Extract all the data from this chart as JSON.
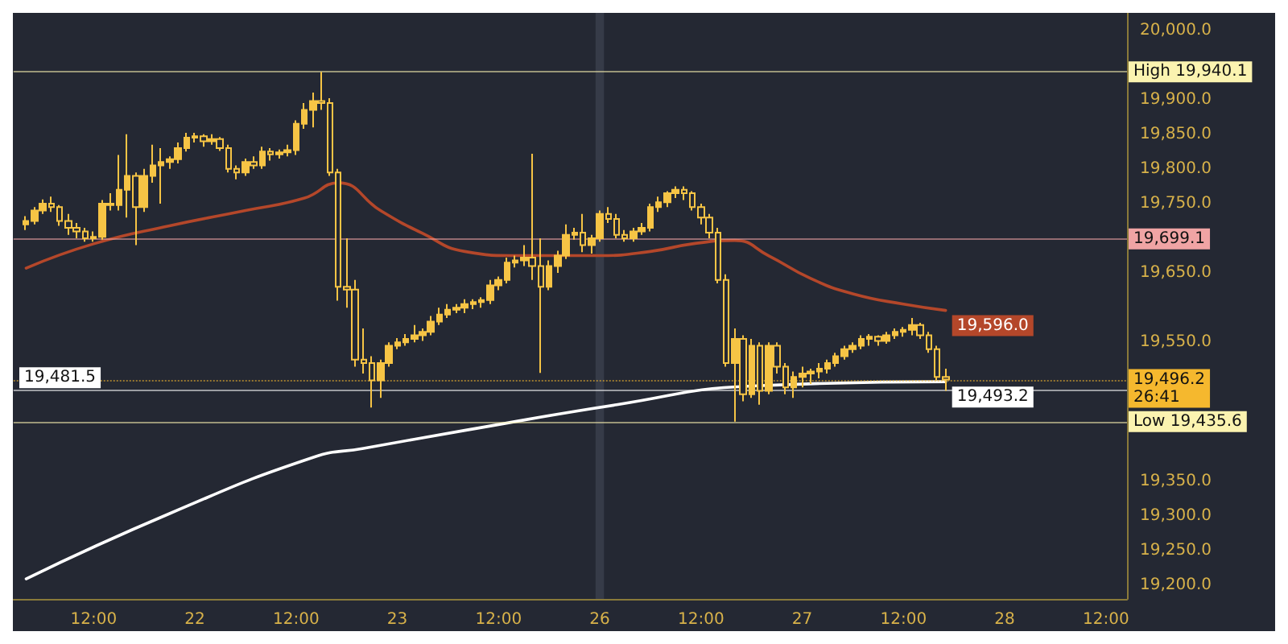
{
  "chart_data": {
    "type": "candlestick",
    "color": "#f6c445",
    "categories": [
      null,
      null,
      null,
      null,
      null,
      null,
      null,
      null,
      null,
      "12:00",
      null,
      null,
      null,
      null,
      null,
      null,
      null,
      null,
      null,
      null,
      null,
      "22",
      null,
      null,
      null,
      null,
      null,
      null,
      null,
      null,
      null,
      null,
      null,
      "12:00",
      null,
      null,
      null,
      null,
      null,
      null,
      null,
      null,
      null,
      null,
      null,
      "23",
      null,
      null,
      null,
      null,
      null,
      null,
      null,
      null,
      null,
      null,
      null,
      "12:00",
      null,
      null,
      null,
      null,
      null,
      null,
      null,
      null,
      null,
      null,
      null,
      "26",
      null,
      null,
      null,
      null,
      null,
      null,
      null,
      null,
      null,
      null,
      null,
      "12:00",
      null,
      null,
      null,
      null,
      null,
      null,
      null,
      null,
      null,
      null,
      null,
      "27",
      null,
      null,
      null,
      null,
      null,
      null,
      null,
      null,
      null,
      null,
      null,
      "12:00",
      null,
      null,
      null,
      null,
      null,
      null,
      null,
      null,
      null,
      null,
      null,
      "28",
      null,
      null,
      null,
      null,
      null,
      null,
      null,
      null,
      null,
      null,
      null,
      "12:00",
      null,
      null
    ],
    "ohlc": [
      null,
      [
        19720,
        19732,
        19712,
        19725
      ],
      [
        19725,
        19745,
        19720,
        19740
      ],
      [
        19740,
        19756,
        19735,
        19750
      ],
      [
        19750,
        19760,
        19738,
        19745
      ],
      [
        19745,
        19748,
        19718,
        19725
      ],
      [
        19725,
        19735,
        19705,
        19715
      ],
      [
        19715,
        19722,
        19700,
        19710
      ],
      [
        19710,
        19715,
        19695,
        19700
      ],
      [
        19700,
        19710,
        19695,
        19702
      ],
      [
        19702,
        19755,
        19698,
        19750
      ],
      [
        19750,
        19765,
        19740,
        19748
      ],
      [
        19748,
        19820,
        19740,
        19770
      ],
      [
        19770,
        19850,
        19730,
        19790
      ],
      [
        19790,
        19795,
        19690,
        19745
      ],
      [
        19745,
        19800,
        19738,
        19790
      ],
      [
        19790,
        19835,
        19780,
        19805
      ],
      [
        19805,
        19830,
        19750,
        19810
      ],
      [
        19810,
        19818,
        19800,
        19814
      ],
      [
        19814,
        19838,
        19808,
        19830
      ],
      [
        19830,
        19852,
        19825,
        19845
      ],
      [
        19845,
        19852,
        19838,
        19847
      ],
      [
        19847,
        19850,
        19832,
        19840
      ],
      [
        19840,
        19850,
        19835,
        19843
      ],
      [
        19843,
        19846,
        19826,
        19830
      ],
      [
        19830,
        19835,
        19795,
        19800
      ],
      [
        19800,
        19805,
        19785,
        19795
      ],
      [
        19795,
        19815,
        19790,
        19810
      ],
      [
        19810,
        19818,
        19800,
        19805
      ],
      [
        19805,
        19832,
        19800,
        19825
      ],
      [
        19825,
        19830,
        19812,
        19821
      ],
      [
        19821,
        19828,
        19815,
        19824
      ],
      [
        19824,
        19835,
        19818,
        19827
      ],
      [
        19827,
        19870,
        19820,
        19865
      ],
      [
        19865,
        19895,
        19858,
        19885
      ],
      [
        19885,
        19910,
        19860,
        19898
      ],
      [
        19898,
        19940.1,
        19885,
        19895
      ],
      [
        19895,
        19902,
        19790,
        19795
      ],
      [
        19795,
        19800,
        19610,
        19630
      ],
      [
        19630,
        19700,
        19600,
        19626
      ],
      [
        19626,
        19640,
        19515,
        19525
      ],
      [
        19525,
        19570,
        19505,
        19520
      ],
      [
        19520,
        19530,
        19456,
        19495
      ],
      [
        19495,
        19525,
        19470,
        19520
      ],
      [
        19520,
        19550,
        19515,
        19545
      ],
      [
        19545,
        19556,
        19540,
        19550
      ],
      [
        19550,
        19562,
        19545,
        19555
      ],
      [
        19555,
        19575,
        19550,
        19560
      ],
      [
        19560,
        19570,
        19552,
        19565
      ],
      [
        19565,
        19588,
        19560,
        19580
      ],
      [
        19580,
        19600,
        19575,
        19590
      ],
      [
        19590,
        19605,
        19585,
        19597
      ],
      [
        19597,
        19605,
        19592,
        19600
      ],
      [
        19600,
        19612,
        19592,
        19605
      ],
      [
        19605,
        19612,
        19598,
        19608
      ],
      [
        19608,
        19615,
        19600,
        19611
      ],
      [
        19611,
        19640,
        19605,
        19632
      ],
      [
        19632,
        19645,
        19625,
        19640
      ],
      [
        19640,
        19672,
        19635,
        19665
      ],
      [
        19665,
        19675,
        19658,
        19668
      ],
      [
        19668,
        19690,
        19660,
        19672
      ],
      [
        19672,
        19822,
        19640,
        19660
      ],
      [
        19660,
        19700,
        19506,
        19630
      ],
      [
        19630,
        19668,
        19625,
        19660
      ],
      [
        19660,
        19682,
        19650,
        19675
      ],
      [
        19675,
        19720,
        19670,
        19705
      ],
      [
        19705,
        19715,
        19698,
        19708
      ],
      [
        19708,
        19735,
        19680,
        19690
      ],
      [
        19690,
        19705,
        19678,
        19700
      ],
      [
        19700,
        19740,
        19695,
        19735
      ],
      [
        19735,
        19745,
        19722,
        19728
      ],
      [
        19728,
        19735,
        19700,
        19705
      ],
      [
        19705,
        19712,
        19695,
        19700
      ],
      [
        19700,
        19715,
        19695,
        19710
      ],
      [
        19710,
        19722,
        19705,
        19715
      ],
      [
        19715,
        19750,
        19710,
        19745
      ],
      [
        19745,
        19760,
        19738,
        19752
      ],
      [
        19752,
        19768,
        19745,
        19765
      ],
      [
        19765,
        19775,
        19758,
        19770
      ],
      [
        19770,
        19775,
        19755,
        19765
      ],
      [
        19765,
        19768,
        19740,
        19745
      ],
      [
        19745,
        19750,
        19720,
        19730
      ],
      [
        19730,
        19735,
        19700,
        19708
      ],
      [
        19708,
        19715,
        19635,
        19640
      ],
      [
        19640,
        19648,
        19515,
        19520
      ],
      [
        19520,
        19570,
        19435.6,
        19555
      ],
      [
        19555,
        19560,
        19465,
        19475
      ],
      [
        19475,
        19555,
        19470,
        19545
      ],
      [
        19545,
        19550,
        19460,
        19480
      ],
      [
        19480,
        19550,
        19475,
        19545
      ],
      [
        19545,
        19550,
        19505,
        19515
      ],
      [
        19515,
        19520,
        19475,
        19485
      ],
      [
        19485,
        19508,
        19470,
        19500
      ],
      [
        19500,
        19515,
        19485,
        19505
      ],
      [
        19505,
        19512,
        19490,
        19508
      ],
      [
        19508,
        19520,
        19498,
        19512
      ],
      [
        19512,
        19525,
        19505,
        19520
      ],
      [
        19520,
        19535,
        19515,
        19530
      ],
      [
        19530,
        19545,
        19525,
        19540
      ],
      [
        19540,
        19550,
        19535,
        19545
      ],
      [
        19545,
        19560,
        19540,
        19555
      ],
      [
        19555,
        19562,
        19545,
        19558
      ],
      [
        19558,
        19560,
        19545,
        19552
      ],
      [
        19552,
        19565,
        19548,
        19560
      ],
      [
        19560,
        19570,
        19555,
        19565
      ],
      [
        19565,
        19572,
        19558,
        19568
      ],
      [
        19568,
        19585,
        19560,
        19575
      ],
      [
        19575,
        19578,
        19555,
        19560
      ],
      [
        19560,
        19565,
        19535,
        19540
      ],
      [
        19540,
        19545,
        19495,
        19500
      ],
      [
        19500,
        19512,
        19480,
        19496.2
      ],
      null,
      null,
      null,
      null,
      null,
      null,
      null,
      null,
      null,
      null,
      null,
      null,
      null,
      null,
      null,
      null,
      null,
      null,
      null,
      null,
      null
    ],
    "series": [
      {
        "type": "line",
        "color": "#b4472a",
        "values": [
          null,
          19657,
          null,
          null,
          null,
          null,
          null,
          null,
          null,
          19692,
          null,
          null,
          null,
          null,
          null,
          null,
          null,
          null,
          19718,
          null,
          null,
          null,
          null,
          null,
          null,
          null,
          null,
          19740,
          null,
          null,
          null,
          null,
          null,
          null,
          19758,
          null,
          null,
          null,
          19780,
          null,
          null,
          null,
          null,
          19740,
          null,
          null,
          null,
          null,
          19707,
          null,
          null,
          null,
          null,
          19681,
          null,
          null,
          null,
          null,
          null,
          19675,
          null,
          null,
          null,
          null,
          19675,
          null,
          null,
          null,
          null,
          19675,
          null,
          null,
          null,
          null,
          null,
          19681,
          null,
          null,
          null,
          null,
          19692,
          null,
          null,
          null,
          null,
          19697,
          null,
          null,
          null,
          19675,
          null,
          null,
          null,
          null,
          19642,
          null,
          null,
          null,
          null,
          19620,
          null,
          null,
          null,
          null,
          null,
          19605,
          null,
          null,
          null,
          null,
          19596,
          null,
          null,
          null,
          null,
          null,
          null,
          null,
          null,
          null,
          null,
          null,
          null,
          null,
          null,
          null,
          null,
          null,
          null,
          null,
          null,
          null
        ],
        "value_labels": [
          null,
          null,
          null,
          null,
          null,
          null,
          null,
          null,
          null,
          null,
          null,
          null,
          null,
          null,
          null,
          null,
          null,
          null,
          null,
          null,
          null,
          null,
          null,
          null,
          null,
          null,
          null,
          null,
          null,
          null,
          null,
          null,
          null,
          null,
          null,
          null,
          null,
          null,
          null,
          null,
          null,
          null,
          null,
          null,
          null,
          null,
          null,
          null,
          null,
          null,
          null,
          null,
          null,
          null,
          null,
          null,
          null,
          null,
          null,
          null,
          null,
          null,
          null,
          null,
          null,
          null,
          null,
          null,
          null,
          null,
          null,
          null,
          null,
          null,
          null,
          null,
          null,
          null,
          null,
          null,
          null,
          null,
          null,
          null,
          null,
          null,
          null,
          null,
          null,
          null,
          null,
          null,
          null,
          null,
          null,
          null,
          null,
          null,
          null,
          null,
          null,
          null,
          null,
          null,
          null,
          null,
          null,
          null,
          null,
          null,
          "19,596.0",
          null,
          null,
          null,
          null,
          null,
          null,
          null,
          null,
          null,
          null,
          null,
          null,
          null,
          null,
          null,
          null,
          null,
          null,
          null,
          null,
          null
        ]
      },
      {
        "type": "line",
        "color": "#ffffff",
        "values": [
          null,
          19209,
          null,
          null,
          null,
          null,
          null,
          null,
          null,
          null,
          null,
          null,
          null,
          null,
          null,
          null,
          null,
          null,
          19303,
          null,
          null,
          null,
          null,
          null,
          null,
          null,
          null,
          null,
          null,
          null,
          null,
          null,
          null,
          null,
          null,
          19384,
          null,
          null,
          null,
          null,
          null,
          19397,
          null,
          null,
          null,
          null,
          null,
          null,
          null,
          null,
          null,
          null,
          null,
          19423,
          null,
          null,
          null,
          null,
          null,
          null,
          null,
          null,
          null,
          null,
          null,
          null,
          null,
          null,
          null,
          null,
          null,
          19460,
          null,
          null,
          null,
          null,
          null,
          null,
          null,
          null,
          null,
          null,
          null,
          null,
          null,
          null,
          null,
          19487,
          null,
          null,
          null,
          null,
          null,
          null,
          null,
          null,
          null,
          null,
          null,
          null,
          null,
          null,
          null,
          null,
          null,
          null,
          null,
          null,
          null,
          null,
          19493.2,
          null,
          null,
          null,
          null,
          null,
          null,
          null,
          null,
          null,
          null,
          null,
          null,
          null,
          null,
          null,
          null,
          null,
          null,
          null,
          null,
          null
        ],
        "value_labels": [
          null,
          null,
          null,
          null,
          null,
          null,
          null,
          null,
          null,
          null,
          null,
          null,
          null,
          null,
          null,
          null,
          null,
          null,
          null,
          null,
          null,
          null,
          null,
          null,
          null,
          null,
          null,
          null,
          null,
          null,
          null,
          null,
          null,
          null,
          null,
          null,
          null,
          null,
          null,
          null,
          null,
          null,
          null,
          null,
          null,
          null,
          null,
          null,
          null,
          null,
          null,
          null,
          null,
          null,
          null,
          null,
          null,
          null,
          null,
          null,
          null,
          null,
          null,
          null,
          null,
          null,
          null,
          null,
          null,
          null,
          null,
          null,
          null,
          null,
          null,
          null,
          null,
          null,
          null,
          null,
          null,
          null,
          null,
          null,
          null,
          null,
          null,
          null,
          null,
          null,
          null,
          null,
          null,
          null,
          null,
          null,
          null,
          null,
          null,
          null,
          null,
          null,
          null,
          null,
          null,
          null,
          null,
          null,
          null,
          null,
          "19,493.2",
          null,
          null,
          null,
          null,
          null,
          null,
          null,
          null,
          null,
          null,
          null,
          null,
          null,
          null,
          null,
          null,
          null,
          null,
          null,
          null,
          null
        ]
      }
    ],
    "ylim": [
      19180,
      20025
    ],
    "yticks": [
      {
        "value": 19200,
        "label": "19,200.0"
      },
      {
        "value": 19250,
        "label": "19,250.0"
      },
      {
        "value": 19300,
        "label": "19,300.0"
      },
      {
        "value": 19350,
        "label": "19,350.0"
      },
      {
        "value": 19550,
        "label": "19,550.0"
      },
      {
        "value": 19650,
        "label": "19,650.0"
      },
      {
        "value": 19750,
        "label": "19,750.0"
      },
      {
        "value": 19800,
        "label": "19,800.0"
      },
      {
        "value": 19850,
        "label": "19,850.0"
      },
      {
        "value": 19900,
        "label": "19,900.0"
      },
      {
        "value": 20000,
        "label": "20,000.0"
      }
    ],
    "ref_lines": [
      {
        "axis": "y",
        "value": 19940.1,
        "label": "High 19,940.1",
        "color": "#fbf3b0",
        "line_style": "solid"
      },
      {
        "axis": "y",
        "value": 19699.1,
        "label": "19,699.1",
        "color": "#f0a4a4",
        "line_style": "solid"
      },
      {
        "axis": "y",
        "value": 19496.2,
        "label": "19,496.2\n26:41",
        "color": "#f5b82e",
        "line_style": "dotted"
      },
      {
        "axis": "y",
        "value": 19481.5,
        "label": "19,481.5",
        "color": "#ffffff",
        "line_style": "solid"
      },
      {
        "axis": "y",
        "value": 19435.6,
        "label": "Low 19,435.6",
        "color": "#fbf3b0",
        "line_style": "solid"
      }
    ],
    "bands": [
      {
        "axis": "x",
        "from": "26",
        "to": "26",
        "color": "#363b48"
      }
    ],
    "grid": false
  }
}
